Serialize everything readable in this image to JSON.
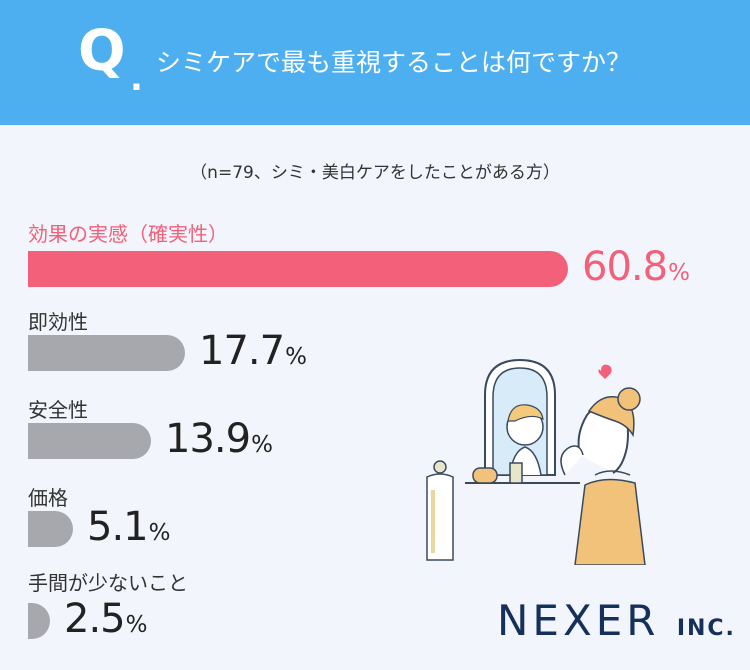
{
  "header": {
    "q_mark": "Q",
    "q_dot": ".",
    "question": "シミケアで最も重視することは何ですか？"
  },
  "note": "（n=79、シミ・美白ケアをしたことがある方）",
  "chart_data": {
    "type": "bar",
    "orientation": "horizontal",
    "categories": [
      "効果の実感（確実性）",
      "即効性",
      "安全性",
      "価格",
      "手間が少ないこと"
    ],
    "values": [
      60.8,
      17.7,
      13.9,
      5.1,
      2.5
    ],
    "value_labels": [
      "60.8",
      "17.7",
      "13.9",
      "5.1",
      "2.5"
    ],
    "unit": "%",
    "highlight_index": 0,
    "colors": {
      "highlight": "#f2607a",
      "normal": "#a7a8ad"
    }
  },
  "logo": {
    "name": "NEXER",
    "suffix": "INC."
  },
  "illustration": {
    "name": "woman-mirror-illustration"
  }
}
